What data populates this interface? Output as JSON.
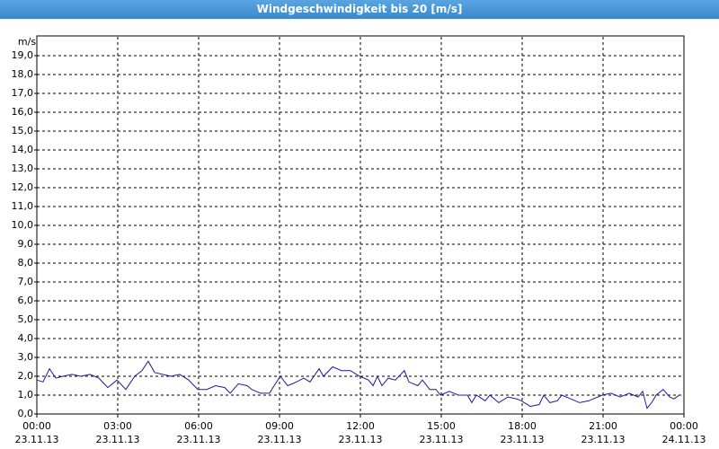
{
  "chart_data": {
    "type": "line",
    "title": "Windgeschwindigkeit bis 20 [m/s]",
    "y_label": "m/s",
    "x": [
      0,
      0.23,
      0.47,
      0.7,
      0.97,
      1.3,
      1.63,
      1.97,
      2.3,
      2.63,
      2.97,
      3.3,
      3.63,
      3.9,
      4.13,
      4.37,
      4.97,
      5.3,
      5.63,
      5.97,
      6.3,
      6.63,
      6.97,
      7.17,
      7.47,
      7.8,
      7.97,
      8.3,
      8.63,
      8.8,
      9.03,
      9.3,
      9.63,
      9.9,
      10.13,
      10.47,
      10.63,
      10.97,
      11.3,
      11.63,
      11.97,
      12.3,
      12.47,
      12.63,
      12.8,
      13.03,
      13.3,
      13.63,
      13.8,
      14.13,
      14.3,
      14.57,
      14.8,
      14.97,
      15.3,
      15.63,
      15.97,
      16.13,
      16.3,
      16.63,
      16.8,
      17.13,
      17.47,
      17.8,
      17.97,
      18.3,
      18.63,
      18.8,
      19.03,
      19.3,
      19.47,
      19.8,
      20.13,
      20.47,
      20.97,
      21.3,
      21.63,
      21.97,
      22.3,
      22.47,
      22.63,
      22.8,
      22.97,
      23.23,
      23.47,
      23.63,
      23.83
    ],
    "series": [
      {
        "name": "Windgeschwindigkeit",
        "color": "#1a1a9c",
        "values": [
          1.8,
          1.7,
          2.4,
          1.9,
          2.0,
          2.1,
          2.0,
          2.1,
          1.9,
          1.4,
          1.8,
          1.3,
          2.0,
          2.3,
          2.8,
          2.2,
          2.0,
          2.1,
          1.8,
          1.3,
          1.3,
          1.5,
          1.4,
          1.1,
          1.6,
          1.5,
          1.3,
          1.1,
          1.1,
          1.5,
          2.0,
          1.5,
          1.7,
          1.9,
          1.7,
          2.4,
          2.0,
          2.5,
          2.3,
          2.3,
          2.0,
          1.8,
          1.5,
          2.0,
          1.5,
          1.9,
          1.8,
          2.3,
          1.7,
          1.5,
          1.8,
          1.3,
          1.3,
          1.0,
          1.2,
          1.0,
          1.0,
          0.6,
          1.0,
          0.7,
          1.0,
          0.6,
          0.9,
          0.8,
          0.7,
          0.4,
          0.5,
          1.0,
          0.6,
          0.7,
          1.0,
          0.8,
          0.6,
          0.7,
          1.0,
          1.1,
          0.9,
          1.1,
          0.9,
          1.2,
          0.3,
          0.6,
          1.0,
          1.3,
          0.9,
          0.8,
          1.0
        ]
      }
    ],
    "xlim": [
      0,
      24
    ],
    "xticks": [
      {
        "value": 0,
        "label": "00:00"
      },
      {
        "value": 3,
        "label": "03:00"
      },
      {
        "value": 6,
        "label": "06:00"
      },
      {
        "value": 9,
        "label": "09:00"
      },
      {
        "value": 12,
        "label": "12:00"
      },
      {
        "value": 15,
        "label": "15:00"
      },
      {
        "value": 18,
        "label": "18:00"
      },
      {
        "value": 21,
        "label": "21:00"
      },
      {
        "value": 24,
        "label": "00:00"
      }
    ],
    "xtick_dates": [
      "23.11.13",
      "23.11.13",
      "23.11.13",
      "23.11.13",
      "23.11.13",
      "23.11.13",
      "23.11.13",
      "23.11.13",
      "24.11.13"
    ],
    "ylim": [
      0,
      20
    ],
    "yticks": [
      {
        "value": 0,
        "label": "0,0"
      },
      {
        "value": 1,
        "label": "1,0"
      },
      {
        "value": 2,
        "label": "2,0"
      },
      {
        "value": 3,
        "label": "3,0"
      },
      {
        "value": 4,
        "label": "4,0"
      },
      {
        "value": 5,
        "label": "5,0"
      },
      {
        "value": 6,
        "label": "6,0"
      },
      {
        "value": 7,
        "label": "7,0"
      },
      {
        "value": 8,
        "label": "8,0"
      },
      {
        "value": 9,
        "label": "9,0"
      },
      {
        "value": 10,
        "label": "10,0"
      },
      {
        "value": 11,
        "label": "11,0"
      },
      {
        "value": 12,
        "label": "12,0"
      },
      {
        "value": 13,
        "label": "13,0"
      },
      {
        "value": 14,
        "label": "14,0"
      },
      {
        "value": 15,
        "label": "15,0"
      },
      {
        "value": 16,
        "label": "16,0"
      },
      {
        "value": 17,
        "label": "17,0"
      },
      {
        "value": 18,
        "label": "18,0"
      },
      {
        "value": 19,
        "label": "19,0"
      }
    ],
    "grid": true
  }
}
